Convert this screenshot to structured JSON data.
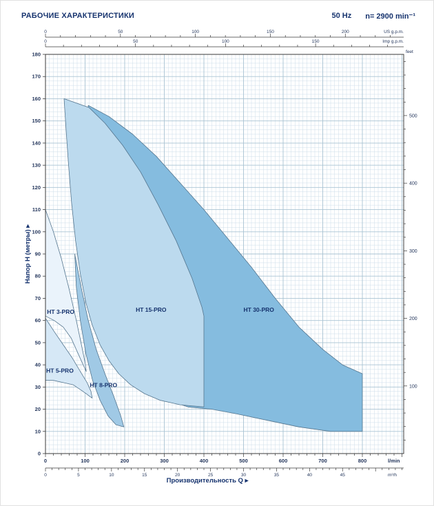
{
  "header": {
    "title": "РАБОЧИЕ ХАРАКТЕРИСТИКИ",
    "frequency": "50 Hz",
    "speed": "n= 2900 min⁻¹"
  },
  "chart_data": {
    "type": "area",
    "title": "РАБОЧИЕ ХАРАКТЕРИСТИКИ",
    "x_label": "Производительность  Q  ▸",
    "y_label": "Напор H (метры)  ▸",
    "legend_position": "none",
    "grid": "on",
    "axes": {
      "lmin": {
        "unit": "l/min",
        "min": 0,
        "max": 800,
        "ticks": [
          0,
          100,
          200,
          300,
          400,
          500,
          600,
          700,
          800
        ]
      },
      "m3h": {
        "unit": "m³/h",
        "factor_lmin": 16.667,
        "ticks": [
          0,
          5,
          10,
          15,
          20,
          25,
          30,
          35,
          40,
          45
        ]
      },
      "us_gpm": {
        "unit": "US g.p.m.",
        "factor_lmin": 3.785,
        "ticks": [
          0,
          50,
          100,
          150,
          200
        ]
      },
      "imp_gpm": {
        "unit": "Imp g.p.m.",
        "factor_lmin": 4.546,
        "ticks": [
          0,
          50,
          100,
          150
        ]
      },
      "meters": {
        "unit": "Напор H (метры)",
        "min": 0,
        "max": 180,
        "ticks": [
          0,
          10,
          20,
          30,
          40,
          50,
          60,
          70,
          80,
          90,
          100,
          110,
          120,
          130,
          140,
          150,
          160,
          170,
          180
        ]
      },
      "feet": {
        "unit": "feet",
        "factor_m": 0.3048,
        "ticks": [
          100,
          200,
          300,
          400,
          500
        ]
      }
    },
    "series": [
      {
        "name": "HT 30-PRO",
        "fill": "#85bcdf",
        "label_at": [
          500,
          64
        ],
        "points": [
          [
            108,
            157
          ],
          [
            160,
            152
          ],
          [
            220,
            144
          ],
          [
            280,
            134
          ],
          [
            340,
            122
          ],
          [
            400,
            110
          ],
          [
            460,
            97
          ],
          [
            520,
            84
          ],
          [
            580,
            70
          ],
          [
            640,
            57
          ],
          [
            700,
            47
          ],
          [
            750,
            40
          ],
          [
            800,
            36
          ],
          [
            800,
            10
          ],
          [
            720,
            10
          ],
          [
            640,
            12
          ],
          [
            560,
            15
          ],
          [
            480,
            18
          ],
          [
            420,
            20
          ],
          [
            360,
            21
          ],
          [
            310,
            24
          ],
          [
            270,
            28
          ],
          [
            230,
            35
          ],
          [
            195,
            44
          ],
          [
            165,
            56
          ],
          [
            140,
            71
          ],
          [
            124,
            90
          ],
          [
            114,
            112
          ],
          [
            108,
            135
          ]
        ]
      },
      {
        "name": "HT 15-PRO",
        "fill": "#bcdaee",
        "label_at": [
          228,
          64
        ],
        "points": [
          [
            47,
            160
          ],
          [
            110,
            156
          ],
          [
            150,
            149
          ],
          [
            195,
            139
          ],
          [
            240,
            127
          ],
          [
            285,
            112
          ],
          [
            330,
            96
          ],
          [
            370,
            79
          ],
          [
            395,
            66
          ],
          [
            400,
            62
          ],
          [
            400,
            21
          ],
          [
            340,
            22
          ],
          [
            290,
            24
          ],
          [
            250,
            27
          ],
          [
            215,
            31
          ],
          [
            185,
            36
          ],
          [
            160,
            42
          ],
          [
            138,
            49
          ],
          [
            118,
            58
          ],
          [
            102,
            68
          ],
          [
            88,
            81
          ],
          [
            76,
            96
          ],
          [
            66,
            113
          ],
          [
            58,
            131
          ],
          [
            52,
            146
          ]
        ]
      },
      {
        "name": "HT 8-PRO",
        "fill": "#a0c9e5",
        "label_at": [
          112,
          30
        ],
        "points": [
          [
            74,
            90
          ],
          [
            90,
            75
          ],
          [
            108,
            60
          ],
          [
            128,
            47
          ],
          [
            150,
            36
          ],
          [
            172,
            26
          ],
          [
            190,
            17
          ],
          [
            198,
            12
          ],
          [
            178,
            13
          ],
          [
            158,
            17
          ],
          [
            138,
            24
          ],
          [
            119,
            33
          ],
          [
            102,
            45
          ],
          [
            88,
            60
          ],
          [
            78,
            75
          ]
        ]
      },
      {
        "name": "HT 5-PRO",
        "fill": "#d6e8f6",
        "label_at": [
          2,
          36.5
        ],
        "points": [
          [
            0,
            61
          ],
          [
            22,
            55
          ],
          [
            45,
            49
          ],
          [
            68,
            43
          ],
          [
            88,
            37
          ],
          [
            105,
            32
          ],
          [
            115,
            28
          ],
          [
            118,
            25
          ],
          [
            95,
            28
          ],
          [
            70,
            31
          ],
          [
            45,
            32
          ],
          [
            20,
            33
          ],
          [
            0,
            33
          ]
        ]
      },
      {
        "name": "HT 3-PRO",
        "fill": "#eaf3fb",
        "label_at": [
          4,
          63
        ],
        "points": [
          [
            0,
            110
          ],
          [
            20,
            100
          ],
          [
            40,
            88
          ],
          [
            60,
            74
          ],
          [
            78,
            60
          ],
          [
            92,
            48
          ],
          [
            100,
            41
          ],
          [
            103,
            37
          ],
          [
            85,
            44
          ],
          [
            65,
            52
          ],
          [
            45,
            57
          ],
          [
            22,
            60
          ],
          [
            0,
            62
          ]
        ]
      }
    ],
    "colors": {
      "grid_minor": "#ccdde9",
      "grid_major": "#a9c3d3",
      "border": "#3a3a3a",
      "text": "#24365c",
      "accent": "#16336e",
      "region_stroke": "#54758e"
    }
  }
}
